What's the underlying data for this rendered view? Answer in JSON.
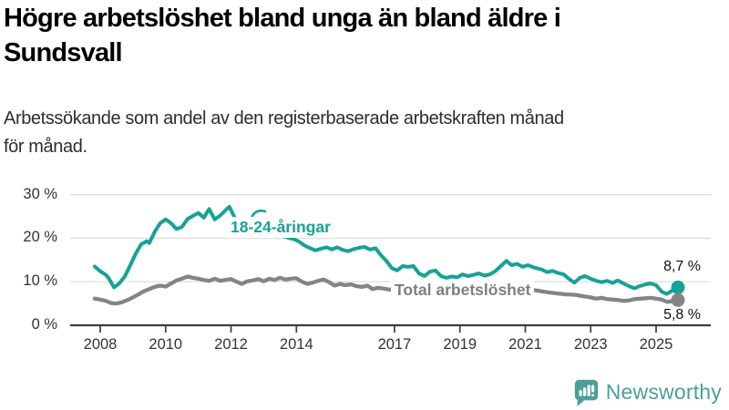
{
  "header": {
    "title_line1": "Högre arbetslöshet bland unga än bland äldre i",
    "title_line2": "Sundsvall",
    "subtitle_line1": "Arbetssökande som andel av den registerbaserade arbetskraften månad",
    "subtitle_line2": "för månad."
  },
  "chart_data": {
    "type": "line",
    "unit": "%",
    "ylim": [
      0,
      30
    ],
    "grid": true,
    "y_ticks": [
      {
        "value": 30,
        "label": "30 %"
      },
      {
        "value": 20,
        "label": "20 %"
      },
      {
        "value": 10,
        "label": "10 %"
      },
      {
        "value": 0,
        "label": "0 %"
      }
    ],
    "x_ticks": [
      {
        "value": 2008,
        "label": "2008"
      },
      {
        "value": 2010,
        "label": "2010"
      },
      {
        "value": 2012,
        "label": "2012"
      },
      {
        "value": 2014,
        "label": "2014"
      },
      {
        "value": 2017,
        "label": "2017"
      },
      {
        "value": 2019,
        "label": "2019"
      },
      {
        "value": 2021,
        "label": "2021"
      },
      {
        "value": 2023,
        "label": "2023"
      },
      {
        "value": 2025,
        "label": "2025"
      }
    ],
    "series": [
      {
        "name": "18-24-åringar",
        "color": "#17A296",
        "end_label": "8,7 %",
        "points": [
          [
            2007.83,
            13.5
          ],
          [
            2008.0,
            12.4
          ],
          [
            2008.17,
            11.6
          ],
          [
            2008.25,
            10.9
          ],
          [
            2008.42,
            8.7
          ],
          [
            2008.58,
            9.6
          ],
          [
            2008.75,
            11.2
          ],
          [
            2008.92,
            13.8
          ],
          [
            2009.08,
            16.4
          ],
          [
            2009.25,
            18.6
          ],
          [
            2009.42,
            19.3
          ],
          [
            2009.5,
            18.9
          ],
          [
            2009.67,
            21.5
          ],
          [
            2009.83,
            23.4
          ],
          [
            2010.0,
            24.3
          ],
          [
            2010.17,
            23.4
          ],
          [
            2010.33,
            22.1
          ],
          [
            2010.5,
            22.6
          ],
          [
            2010.67,
            24.4
          ],
          [
            2010.83,
            25.1
          ],
          [
            2011.0,
            25.8
          ],
          [
            2011.17,
            24.7
          ],
          [
            2011.33,
            26.7
          ],
          [
            2011.5,
            24.3
          ],
          [
            2011.67,
            25.2
          ],
          [
            2011.83,
            26.4
          ],
          [
            2011.95,
            27.2
          ],
          [
            2012.08,
            25.2
          ],
          [
            2012.25,
            22.9
          ],
          [
            2012.42,
            24.1
          ],
          [
            2012.58,
            23.5
          ],
          [
            2012.75,
            23.9
          ],
          [
            2012.92,
            22.7
          ],
          [
            2013.08,
            22.1
          ],
          [
            2013.25,
            21.4
          ],
          [
            2013.42,
            21.7
          ],
          [
            2013.58,
            20.5
          ],
          [
            2013.75,
            20.1
          ],
          [
            2013.92,
            19.8
          ],
          [
            2014.08,
            19.2
          ],
          [
            2014.25,
            18.3
          ],
          [
            2014.42,
            17.7
          ],
          [
            2014.58,
            17.2
          ],
          [
            2014.75,
            17.6
          ],
          [
            2014.92,
            17.9
          ],
          [
            2015.08,
            17.4
          ],
          [
            2015.25,
            17.9
          ],
          [
            2015.42,
            17.3
          ],
          [
            2015.58,
            17.0
          ],
          [
            2015.75,
            17.5
          ],
          [
            2015.92,
            17.8
          ],
          [
            2016.08,
            18.0
          ],
          [
            2016.25,
            17.4
          ],
          [
            2016.42,
            17.7
          ],
          [
            2016.58,
            16.1
          ],
          [
            2016.75,
            14.8
          ],
          [
            2016.92,
            13.1
          ],
          [
            2017.08,
            12.6
          ],
          [
            2017.25,
            13.6
          ],
          [
            2017.42,
            13.4
          ],
          [
            2017.58,
            13.6
          ],
          [
            2017.75,
            11.9
          ],
          [
            2017.92,
            11.3
          ],
          [
            2018.08,
            12.3
          ],
          [
            2018.25,
            12.6
          ],
          [
            2018.42,
            11.3
          ],
          [
            2018.58,
            10.9
          ],
          [
            2018.75,
            11.2
          ],
          [
            2018.92,
            11.0
          ],
          [
            2019.08,
            11.7
          ],
          [
            2019.25,
            11.3
          ],
          [
            2019.42,
            11.6
          ],
          [
            2019.58,
            11.9
          ],
          [
            2019.75,
            11.4
          ],
          [
            2019.92,
            11.7
          ],
          [
            2020.08,
            12.4
          ],
          [
            2020.25,
            13.6
          ],
          [
            2020.42,
            14.8
          ],
          [
            2020.58,
            13.8
          ],
          [
            2020.75,
            14.1
          ],
          [
            2020.92,
            13.4
          ],
          [
            2021.08,
            13.8
          ],
          [
            2021.25,
            13.3
          ],
          [
            2021.5,
            12.8
          ],
          [
            2021.67,
            12.2
          ],
          [
            2021.83,
            12.5
          ],
          [
            2022.0,
            12.0
          ],
          [
            2022.17,
            11.7
          ],
          [
            2022.33,
            10.7
          ],
          [
            2022.5,
            9.8
          ],
          [
            2022.67,
            10.9
          ],
          [
            2022.83,
            11.3
          ],
          [
            2023.0,
            10.7
          ],
          [
            2023.17,
            10.2
          ],
          [
            2023.33,
            9.9
          ],
          [
            2023.5,
            10.2
          ],
          [
            2023.67,
            9.7
          ],
          [
            2023.83,
            10.3
          ],
          [
            2024.0,
            9.6
          ],
          [
            2024.17,
            9.0
          ],
          [
            2024.33,
            8.5
          ],
          [
            2024.5,
            9.0
          ],
          [
            2024.67,
            9.4
          ],
          [
            2024.83,
            9.6
          ],
          [
            2025.0,
            9.2
          ],
          [
            2025.17,
            7.7
          ],
          [
            2025.33,
            7.2
          ],
          [
            2025.5,
            8.0
          ],
          [
            2025.67,
            8.7
          ]
        ]
      },
      {
        "name": "Total arbetslöshet",
        "color": "#848484",
        "end_label": "5,8 %",
        "points": [
          [
            2007.83,
            6.1
          ],
          [
            2008.0,
            5.9
          ],
          [
            2008.17,
            5.6
          ],
          [
            2008.33,
            5.1
          ],
          [
            2008.5,
            5.0
          ],
          [
            2008.67,
            5.3
          ],
          [
            2008.83,
            5.8
          ],
          [
            2009.0,
            6.4
          ],
          [
            2009.17,
            7.1
          ],
          [
            2009.33,
            7.8
          ],
          [
            2009.5,
            8.3
          ],
          [
            2009.67,
            8.8
          ],
          [
            2009.83,
            9.1
          ],
          [
            2010.0,
            8.9
          ],
          [
            2010.17,
            9.6
          ],
          [
            2010.33,
            10.3
          ],
          [
            2010.5,
            10.7
          ],
          [
            2010.67,
            11.2
          ],
          [
            2010.83,
            10.9
          ],
          [
            2011.0,
            10.7
          ],
          [
            2011.17,
            10.4
          ],
          [
            2011.33,
            10.2
          ],
          [
            2011.5,
            10.7
          ],
          [
            2011.67,
            10.2
          ],
          [
            2011.83,
            10.4
          ],
          [
            2012.0,
            10.6
          ],
          [
            2012.17,
            10.0
          ],
          [
            2012.33,
            9.5
          ],
          [
            2012.5,
            10.1
          ],
          [
            2012.67,
            10.3
          ],
          [
            2012.83,
            10.6
          ],
          [
            2013.0,
            10.1
          ],
          [
            2013.17,
            10.7
          ],
          [
            2013.33,
            10.4
          ],
          [
            2013.5,
            10.9
          ],
          [
            2013.67,
            10.5
          ],
          [
            2013.83,
            10.7
          ],
          [
            2014.0,
            10.8
          ],
          [
            2014.17,
            10.0
          ],
          [
            2014.33,
            9.5
          ],
          [
            2014.5,
            9.8
          ],
          [
            2014.67,
            10.2
          ],
          [
            2014.83,
            10.5
          ],
          [
            2015.0,
            9.9
          ],
          [
            2015.17,
            9.1
          ],
          [
            2015.33,
            9.5
          ],
          [
            2015.5,
            9.2
          ],
          [
            2015.67,
            9.4
          ],
          [
            2015.83,
            9.0
          ],
          [
            2016.0,
            8.8
          ],
          [
            2016.17,
            9.1
          ],
          [
            2016.33,
            8.3
          ],
          [
            2016.5,
            8.6
          ],
          [
            2016.67,
            8.4
          ],
          [
            2016.83,
            8.2
          ],
          [
            2017.0,
            8.3
          ],
          [
            2017.25,
            8.0
          ],
          [
            2017.5,
            7.8
          ],
          [
            2017.75,
            7.6
          ],
          [
            2018.0,
            7.8
          ],
          [
            2018.25,
            7.5
          ],
          [
            2018.5,
            7.3
          ],
          [
            2018.75,
            7.2
          ],
          [
            2019.0,
            7.4
          ],
          [
            2019.25,
            7.2
          ],
          [
            2019.5,
            7.3
          ],
          [
            2019.75,
            7.5
          ],
          [
            2020.0,
            7.7
          ],
          [
            2020.25,
            8.3
          ],
          [
            2020.5,
            8.7
          ],
          [
            2020.75,
            8.5
          ],
          [
            2021.0,
            8.3
          ],
          [
            2021.25,
            8.1
          ],
          [
            2021.5,
            7.8
          ],
          [
            2021.75,
            7.5
          ],
          [
            2022.0,
            7.3
          ],
          [
            2022.25,
            7.1
          ],
          [
            2022.5,
            7.0
          ],
          [
            2022.75,
            6.7
          ],
          [
            2023.0,
            6.4
          ],
          [
            2023.17,
            6.1
          ],
          [
            2023.33,
            6.3
          ],
          [
            2023.5,
            6.0
          ],
          [
            2023.67,
            5.9
          ],
          [
            2023.83,
            5.8
          ],
          [
            2024.0,
            5.6
          ],
          [
            2024.17,
            5.7
          ],
          [
            2024.33,
            6.0
          ],
          [
            2024.5,
            6.1
          ],
          [
            2024.67,
            6.2
          ],
          [
            2024.83,
            6.3
          ],
          [
            2025.0,
            6.1
          ],
          [
            2025.17,
            5.9
          ],
          [
            2025.33,
            5.4
          ],
          [
            2025.5,
            5.5
          ],
          [
            2025.67,
            5.8
          ]
        ]
      }
    ]
  },
  "footer": {
    "brand": "Newsworthy",
    "brand_color": "#4C9E99",
    "logo_icon": "bar-chart-speech-bubble"
  }
}
